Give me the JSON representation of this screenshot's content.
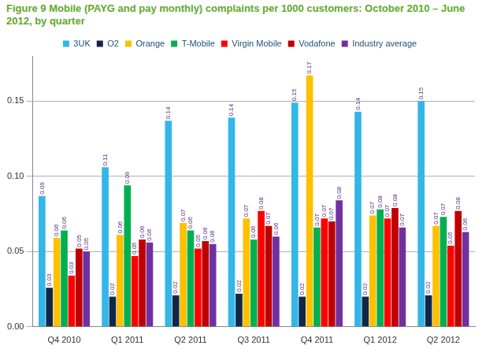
{
  "chart_data": {
    "type": "bar",
    "title": "Figure 9 Mobile (PAYG and pay monthly) complaints per 1000 customers: October 2010 – June 2012, by quarter",
    "categories": [
      "Q4 2010",
      "Q1 2011",
      "Q2 2011",
      "Q3 2011",
      "Q4 2011",
      "Q1 2012",
      "Q2 2012"
    ],
    "series": [
      {
        "name": "3UK",
        "color": "#33b6e8",
        "values": [
          0.087,
          0.106,
          0.137,
          0.139,
          0.149,
          0.143,
          0.15
        ],
        "value_labels": [
          "0.09",
          "0.11",
          "0.14",
          "0.14",
          "0.15",
          "0.14",
          "0.15"
        ]
      },
      {
        "name": "O2",
        "color": "#0f2748",
        "values": [
          0.026,
          0.02,
          0.021,
          0.022,
          0.02,
          0.02,
          0.021
        ],
        "value_labels": [
          "0.03",
          "0.02",
          "0.02",
          "0.02",
          "0.02",
          "0.02",
          "0.02"
        ]
      },
      {
        "name": "Orange",
        "color": "#ffc000",
        "values": [
          0.059,
          0.061,
          0.069,
          0.072,
          0.167,
          0.074,
          0.067
        ],
        "value_labels": [
          "0.06",
          "0.06",
          "0.07",
          "0.07",
          "0.17",
          "0.07",
          "0.07"
        ]
      },
      {
        "name": "T-Mobile",
        "color": "#00b050",
        "values": [
          0.064,
          0.094,
          0.064,
          0.058,
          0.066,
          0.078,
          0.073
        ],
        "value_labels": [
          "0.06",
          "0.09",
          "0.06",
          "0.06",
          "0.07",
          "0.08",
          "0.07"
        ]
      },
      {
        "name": "Virgin Mobile",
        "color": "#ff0000",
        "values": [
          0.034,
          0.047,
          0.052,
          0.077,
          0.072,
          0.072,
          0.054
        ],
        "value_labels": [
          "0.03",
          "0.05",
          "0.05",
          "0.08",
          "0.07",
          "0.07",
          "0.05"
        ]
      },
      {
        "name": "Vodafone",
        "color": "#c00000",
        "values": [
          0.052,
          0.058,
          0.057,
          0.067,
          0.07,
          0.079,
          0.077
        ],
        "value_labels": [
          "0.05",
          "0.06",
          "0.06",
          "0.07",
          "0.07",
          "0.08",
          "0.08"
        ]
      },
      {
        "name": "Industry average",
        "color": "#7030a0",
        "values": [
          0.05,
          0.056,
          0.055,
          0.06,
          0.084,
          0.066,
          0.063
        ],
        "value_labels": [
          "0.05",
          "0.06",
          "0.06",
          "0.06",
          "0.08",
          "0.07",
          "0.06"
        ]
      }
    ],
    "ylim": [
      0,
      0.18
    ],
    "yticks": [
      {
        "value": 0,
        "label": "0.00"
      },
      {
        "value": 0.05,
        "label": "0.05"
      },
      {
        "value": 0.1,
        "label": "0.10"
      },
      {
        "value": 0.15,
        "label": "0.15"
      }
    ],
    "grid": true,
    "legend": "top",
    "data_labels": true
  }
}
